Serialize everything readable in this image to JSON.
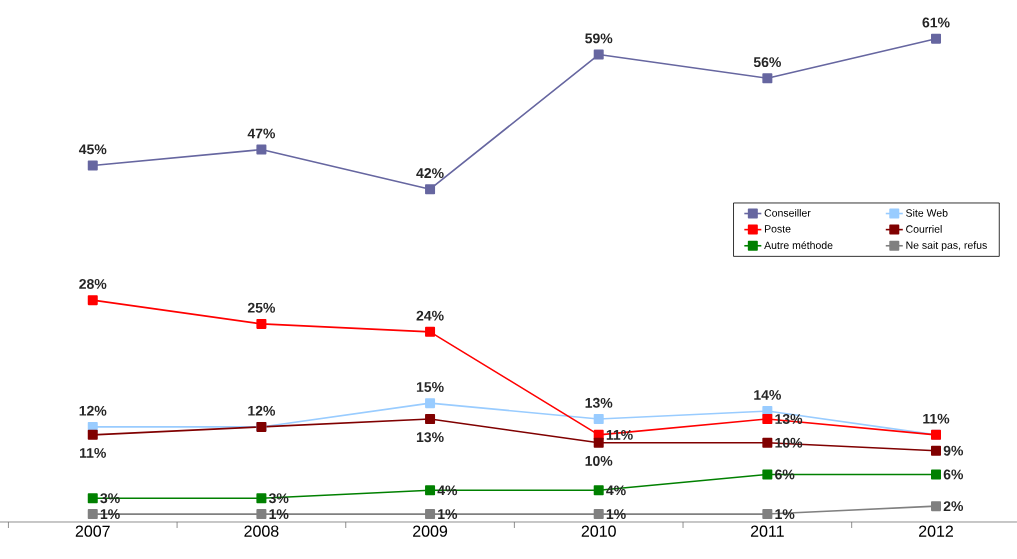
{
  "chart_data": {
    "type": "line",
    "categories": [
      "2007",
      "2008",
      "2009",
      "2010",
      "2011",
      "2012"
    ],
    "series": [
      {
        "name": "Conseiller",
        "color": "#6666a0",
        "values": [
          45,
          47,
          42,
          59,
          56,
          61
        ],
        "value_labels": [
          "45%",
          "47%",
          "42%",
          "59%",
          "56%",
          "61%"
        ]
      },
      {
        "name": "Site Web",
        "color": "#99ccff",
        "values": [
          12,
          12,
          15,
          13,
          14,
          11
        ],
        "value_labels": [
          "12%",
          "12%",
          "15%",
          "13%",
          "14%",
          null
        ]
      },
      {
        "name": "Poste",
        "color": "#ff0000",
        "values": [
          28,
          25,
          24,
          11,
          13,
          11
        ],
        "value_labels": [
          "28%",
          "25%",
          "24%",
          "11%",
          "13%",
          "11%"
        ]
      },
      {
        "name": "Courriel",
        "color": "#800000",
        "values": [
          11,
          12,
          13,
          10,
          10,
          9
        ],
        "value_labels": [
          "11%",
          null,
          "13%",
          "10%",
          "10%",
          "9%"
        ]
      },
      {
        "name": "Autre méthode",
        "color": "#008000",
        "values": [
          3,
          3,
          4,
          4,
          6,
          6
        ],
        "value_labels": [
          "3%",
          "3%",
          "4%",
          "4%",
          "6%",
          "6%"
        ]
      },
      {
        "name": "Ne sait pas, refus",
        "color": "#808080",
        "values": [
          1,
          1,
          1,
          1,
          1,
          2
        ],
        "value_labels": [
          "1%",
          "1%",
          "1%",
          "1%",
          "1%",
          "2%"
        ]
      }
    ],
    "marker": "square",
    "line_style": "solid",
    "legend": "right",
    "tick_labels": "x"
  }
}
